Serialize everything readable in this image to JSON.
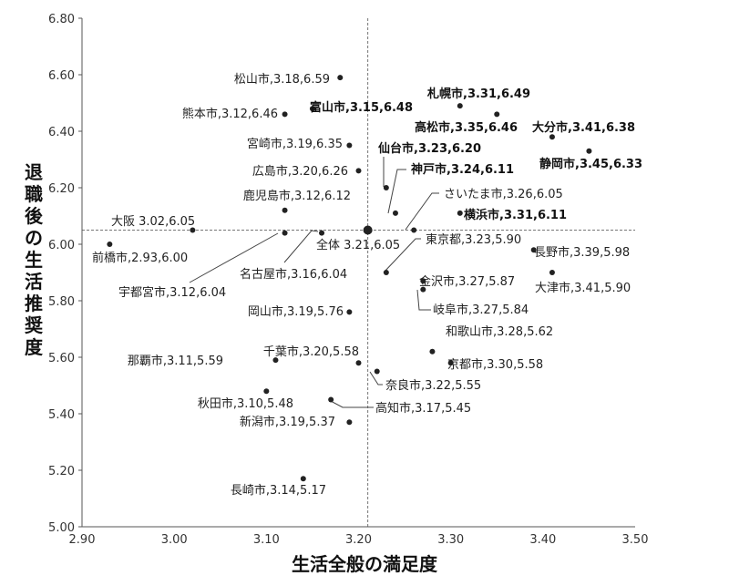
{
  "chart_data": {
    "type": "scatter",
    "title": "",
    "xlabel": "生活全般の満足度",
    "ylabel": "退職後の生活推奨度",
    "xlim": [
      2.9,
      3.5
    ],
    "ylim": [
      5.0,
      6.8
    ],
    "x_ticks": [
      "2.90",
      "3.00",
      "3.10",
      "3.20",
      "3.30",
      "3.40",
      "3.50"
    ],
    "y_ticks": [
      "5.00",
      "5.20",
      "5.40",
      "5.60",
      "5.80",
      "6.00",
      "6.20",
      "6.40",
      "6.60",
      "6.80"
    ],
    "grid": false,
    "reference_lines": {
      "x": 3.21,
      "y": 6.05,
      "style": "dashed"
    },
    "points": [
      {
        "name": "松山市",
        "x": 3.18,
        "y": 6.59,
        "label": "松山市,3.18,6.59",
        "bold": false
      },
      {
        "name": "富山市",
        "x": 3.15,
        "y": 6.48,
        "label": "富山市,3.15,6.48",
        "bold": true
      },
      {
        "name": "熊本市",
        "x": 3.12,
        "y": 6.46,
        "label": "熊本市,3.12,6.46",
        "bold": false
      },
      {
        "name": "宮崎市",
        "x": 3.19,
        "y": 6.35,
        "label": "宮崎市,3.19,6.35",
        "bold": false
      },
      {
        "name": "広島市",
        "x": 3.2,
        "y": 6.26,
        "label": "広島市,3.20,6.26",
        "bold": false
      },
      {
        "name": "鹿児島市",
        "x": 3.12,
        "y": 6.12,
        "label": "鹿児島市,3.12,6.12",
        "bold": false
      },
      {
        "name": "大阪",
        "x": 3.02,
        "y": 6.05,
        "label": "大阪 3.02,6.05",
        "bold": false
      },
      {
        "name": "前橋市",
        "x": 2.93,
        "y": 6.0,
        "label": "前橋市,2.93,6.00",
        "bold": false
      },
      {
        "name": "宇都宮市",
        "x": 3.12,
        "y": 6.04,
        "label": "宇都宮市,3.12,6.04",
        "bold": false
      },
      {
        "name": "名古屋市",
        "x": 3.16,
        "y": 6.04,
        "label": "名古屋市,3.16,6.04",
        "bold": false
      },
      {
        "name": "全体",
        "x": 3.21,
        "y": 6.05,
        "label": "全体 3.21,6.05",
        "bold": false,
        "overall": true
      },
      {
        "name": "札幌市",
        "x": 3.31,
        "y": 6.49,
        "label": "札幌市,3.31,6.49",
        "bold": true
      },
      {
        "name": "高松市",
        "x": 3.35,
        "y": 6.46,
        "label": "高松市,3.35,6.46",
        "bold": true
      },
      {
        "name": "大分市",
        "x": 3.41,
        "y": 6.38,
        "label": "大分市,3.41,6.38",
        "bold": true
      },
      {
        "name": "静岡市",
        "x": 3.45,
        "y": 6.33,
        "label": "静岡市,3.45,6.33",
        "bold": true
      },
      {
        "name": "仙台市",
        "x": 3.23,
        "y": 6.2,
        "label": "仙台市,3.23,6.20",
        "bold": true
      },
      {
        "name": "神戸市",
        "x": 3.24,
        "y": 6.11,
        "label": "神戸市,3.24,6.11",
        "bold": true
      },
      {
        "name": "さいたま市",
        "x": 3.26,
        "y": 6.05,
        "label": "さいたま市,3.26,6.05",
        "bold": false
      },
      {
        "name": "横浜市",
        "x": 3.31,
        "y": 6.11,
        "label": "横浜市,3.31,6.11",
        "bold": true
      },
      {
        "name": "東京都",
        "x": 3.23,
        "y": 5.9,
        "label": "東京都,3.23,5.90",
        "bold": false
      },
      {
        "name": "長野市",
        "x": 3.39,
        "y": 5.98,
        "label": "長野市,3.39,5.98",
        "bold": false
      },
      {
        "name": "大津市",
        "x": 3.41,
        "y": 5.9,
        "label": "大津市,3.41,5.90",
        "bold": false
      },
      {
        "name": "金沢市",
        "x": 3.27,
        "y": 5.87,
        "label": "金沢市,3.27,5.87",
        "bold": false
      },
      {
        "name": "岐阜市",
        "x": 3.27,
        "y": 5.84,
        "label": "岐阜市,3.27,5.84",
        "bold": false
      },
      {
        "name": "岡山市",
        "x": 3.19,
        "y": 5.76,
        "label": "岡山市,3.19,5.76",
        "bold": false
      },
      {
        "name": "和歌山市",
        "x": 3.28,
        "y": 5.62,
        "label": "和歌山市,3.28,5.62",
        "bold": false
      },
      {
        "name": "京都市",
        "x": 3.3,
        "y": 5.58,
        "label": "京都市,3.30,5.58",
        "bold": false
      },
      {
        "name": "那覇市",
        "x": 3.11,
        "y": 5.59,
        "label": "那覇市,3.11,5.59",
        "bold": false
      },
      {
        "name": "千葉市",
        "x": 3.2,
        "y": 5.58,
        "label": "千葉市,3.20,5.58",
        "bold": false
      },
      {
        "name": "奈良市",
        "x": 3.22,
        "y": 5.55,
        "label": "奈良市,3.22,5.55",
        "bold": false
      },
      {
        "name": "秋田市",
        "x": 3.1,
        "y": 5.48,
        "label": "秋田市,3.10,5.48",
        "bold": false
      },
      {
        "name": "高知市",
        "x": 3.17,
        "y": 5.45,
        "label": "高知市,3.17,5.45",
        "bold": false
      },
      {
        "name": "新潟市",
        "x": 3.19,
        "y": 5.37,
        "label": "新潟市,3.19,5.37",
        "bold": false
      },
      {
        "name": "長崎市",
        "x": 3.14,
        "y": 5.17,
        "label": "長崎市,3.14,5.17",
        "bold": false
      }
    ]
  },
  "colors": {
    "point": "#222222",
    "axis": "#555555",
    "refline": "#777777",
    "text": "#222222"
  }
}
